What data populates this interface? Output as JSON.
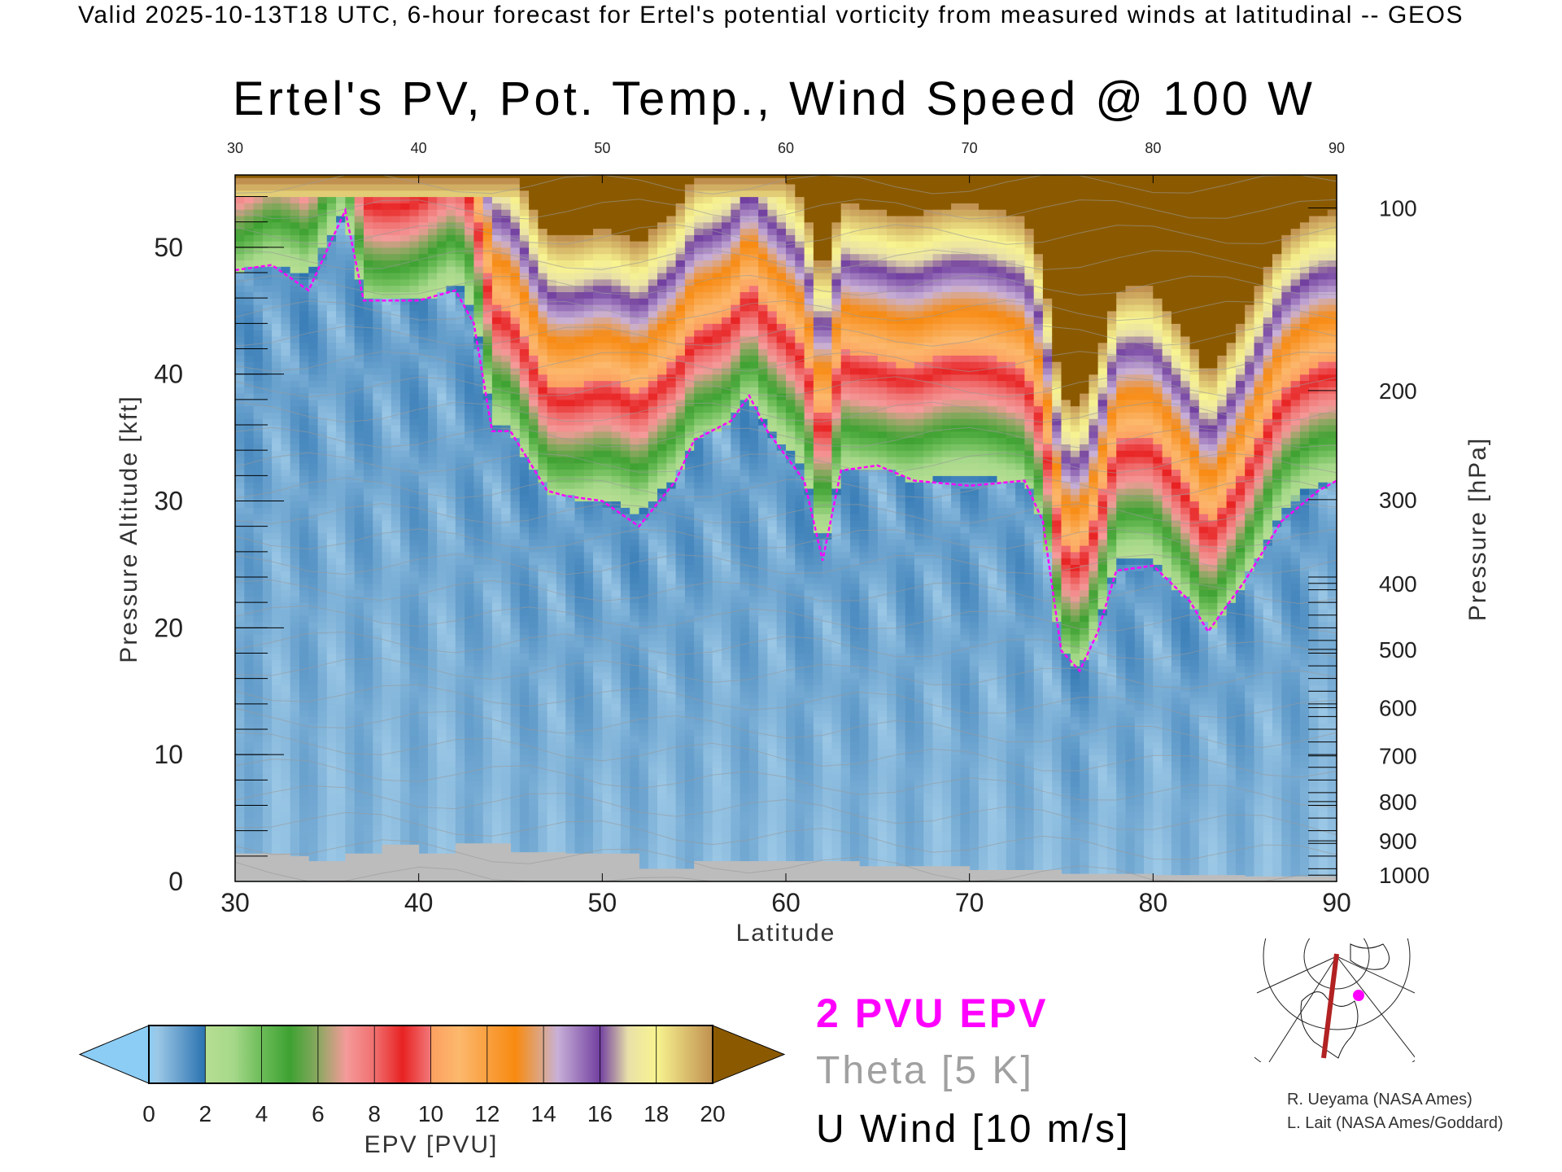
{
  "header": {
    "valid_line": "Valid 2025-10-13T18 UTC, 6-hour forecast for Ertel's potential vorticity from measured winds at latitudinal -- GEOS",
    "title": "Ertel's PV, Pot. Temp., Wind Speed @ 100 W"
  },
  "legend": {
    "pvu_line": "2 PVU EPV",
    "theta_line": "Theta [5 K]",
    "wind_line": "U Wind [10 m/s]"
  },
  "credits": [
    "R. Ueyama (NASA Ames)",
    "L. Lait (NASA Ames/Goddard)"
  ],
  "colors": {
    "tropopause": "#ff00ff",
    "ground": "#bcbcbc",
    "map_track": "#b22222"
  },
  "chart_data": {
    "type": "heatmap",
    "title": "Ertel's PV, Pot. Temp., Wind Speed @ 100 W",
    "xlabel": "Latitude",
    "ylabel": "Pressure Altitude [kft]",
    "y2label": "Pressure [hPa]",
    "xlim": [
      30,
      90
    ],
    "ylim": [
      0,
      55.7
    ],
    "xticks": [
      "30",
      "40",
      "50",
      "60",
      "70",
      "80",
      "90"
    ],
    "yticks": [
      "0",
      "10",
      "20",
      "30",
      "40",
      "50"
    ],
    "pressure_ticks": [
      {
        "label": "100",
        "kft": 53.1
      },
      {
        "label": "200",
        "kft": 38.7
      },
      {
        "label": "300",
        "kft": 30.1
      },
      {
        "label": "400",
        "kft": 23.5
      },
      {
        "label": "500",
        "kft": 18.3
      },
      {
        "label": "600",
        "kft": 13.7
      },
      {
        "label": "700",
        "kft": 9.9
      },
      {
        "label": "800",
        "kft": 6.3
      },
      {
        "label": "900",
        "kft": 3.2
      },
      {
        "label": "1000",
        "kft": 0.5
      }
    ],
    "colorbar": {
      "label": "EPV [PVU]",
      "ticks": [
        "0",
        "2",
        "4",
        "6",
        "8",
        "10",
        "12",
        "14",
        "16",
        "18",
        "20"
      ],
      "range": [
        0,
        20
      ],
      "extend": "both"
    },
    "tropopause_2pvu": {
      "lat": [
        30,
        32,
        34,
        36,
        37,
        40,
        42,
        43,
        44,
        45,
        47,
        48,
        50,
        52,
        54,
        55,
        57,
        58,
        59,
        61,
        62,
        63,
        65,
        67,
        70,
        73,
        74,
        75,
        76,
        77,
        78,
        80,
        82,
        83,
        85,
        87,
        89,
        90
      ],
      "kft": [
        48.2,
        48.6,
        46.6,
        52.9,
        45.8,
        45.8,
        46.6,
        44,
        35.5,
        35.5,
        30.8,
        30.4,
        30,
        28,
        31.6,
        34.8,
        36.3,
        38.3,
        35.5,
        31.6,
        25.3,
        32.4,
        32.8,
        31.6,
        31.2,
        31.6,
        28.4,
        18.2,
        16.6,
        19.7,
        24.5,
        24.9,
        22.1,
        19.7,
        23.7,
        28.4,
        30.8,
        31.6
      ]
    },
    "ground_kft": {
      "lat": [
        30,
        32,
        33,
        34,
        36,
        38,
        40,
        42,
        45,
        48,
        52,
        55,
        60,
        64,
        70,
        75,
        80,
        85,
        90
      ],
      "kft": [
        2.2,
        2.2,
        2.0,
        1.6,
        2.2,
        2.9,
        2.2,
        3.0,
        2.3,
        2.2,
        1.0,
        1.6,
        1.6,
        1.2,
        0.9,
        0.6,
        0.5,
        0.4,
        0.4
      ]
    }
  }
}
